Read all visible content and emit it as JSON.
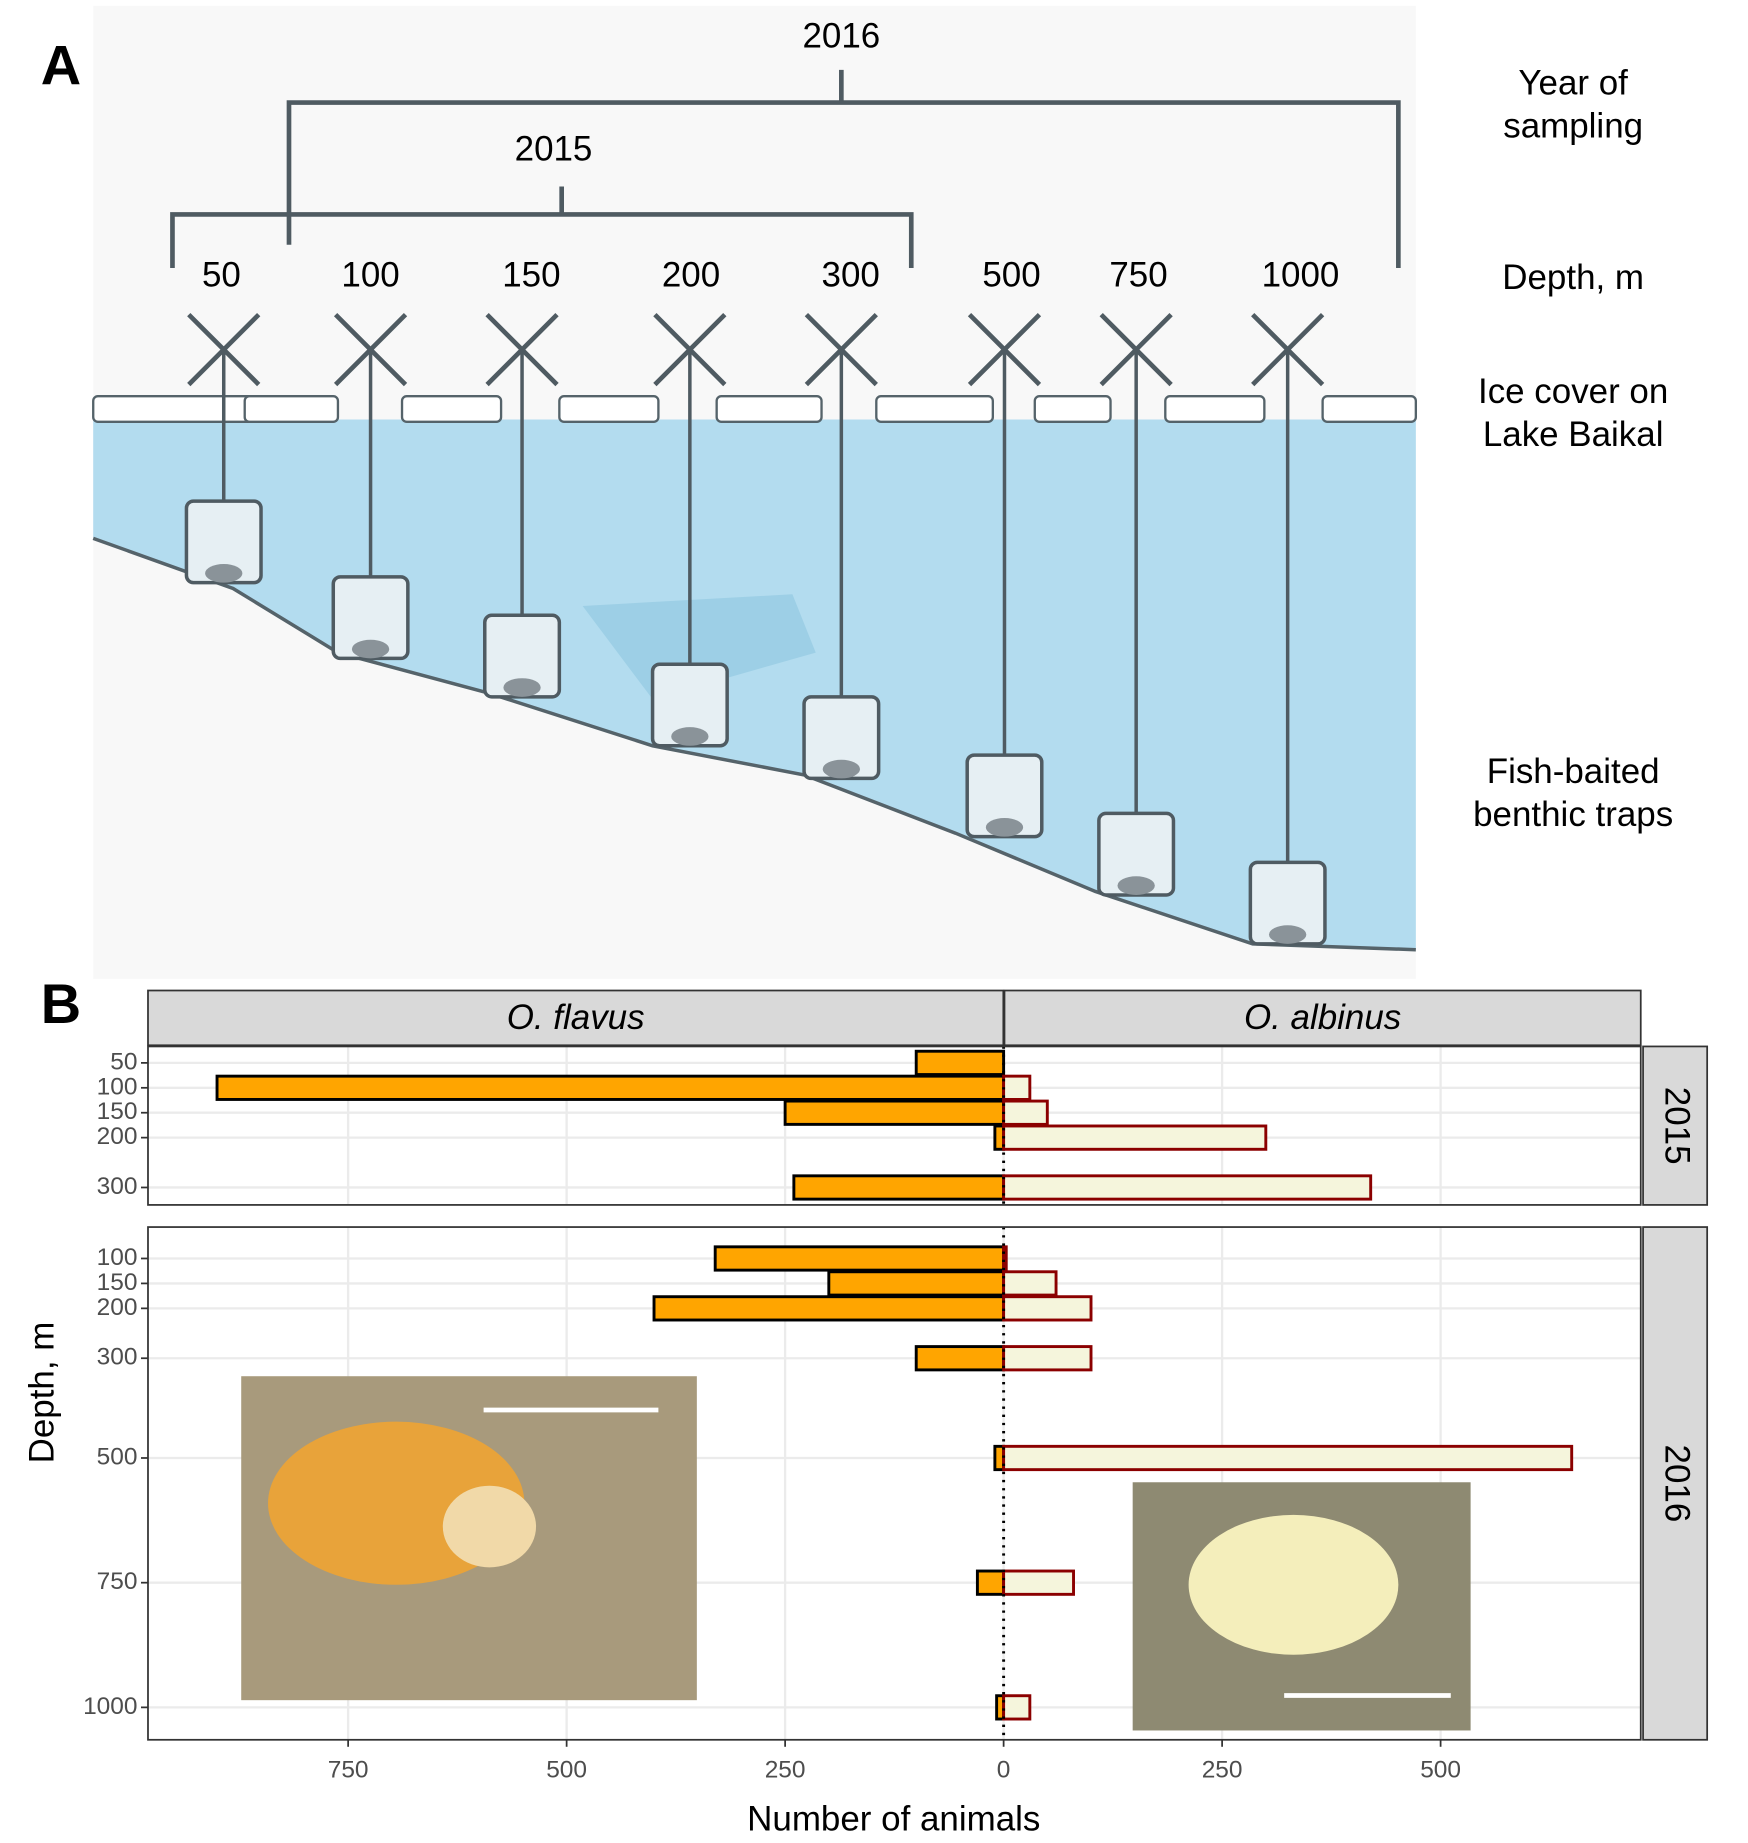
{
  "panel_labels": [
    "A",
    "B"
  ],
  "diagram": {
    "years": [
      "2016",
      "2015"
    ],
    "depths": [
      "50",
      "100",
      "150",
      "200",
      "300",
      "500",
      "750",
      "1000"
    ],
    "side_labels": [
      [
        "Year of",
        "sampling"
      ],
      [
        "Depth, m"
      ],
      [
        "Ice cover on",
        "Lake Baikal"
      ],
      [
        "Fish-baited",
        "benthic traps"
      ]
    ]
  },
  "chart_data": {
    "type": "bar",
    "xlabel": "Number of animals",
    "ylabel": "Depth, m",
    "xlim": [
      -979,
      729
    ],
    "xticks": [
      {
        "value": -750,
        "label": "750"
      },
      {
        "value": -500,
        "label": "500"
      },
      {
        "value": -250,
        "label": "250"
      },
      0,
      250,
      500
    ],
    "grid": true,
    "panels": [
      {
        "label": "2015",
        "ylim": [
          17,
          335
        ],
        "y": [
          50,
          100,
          150,
          200,
          300
        ],
        "yticks": [
          50,
          100,
          150,
          200,
          300
        ]
      },
      {
        "label": "2016",
        "ylim": [
          37,
          1065
        ],
        "y": [
          100,
          150,
          200,
          300,
          500,
          750,
          1000
        ],
        "yticks": [
          100,
          150,
          200,
          300,
          500,
          750,
          1000
        ]
      }
    ],
    "series": [
      {
        "name": "O. flavus",
        "color": "#ffa500",
        "edgecolor": "#000000",
        "values": [
          [
            -100,
            -900,
            -250,
            -10,
            -240
          ],
          [
            -330,
            -200,
            -400,
            -100,
            -10,
            -30,
            -8
          ]
        ]
      },
      {
        "name": "O. albinus",
        "color": "#f5f5dc",
        "edgecolor": "#8b0000",
        "values": [
          [
            0,
            30,
            50,
            300,
            420
          ],
          [
            3,
            60,
            100,
            100,
            650,
            80,
            30
          ]
        ]
      }
    ]
  }
}
